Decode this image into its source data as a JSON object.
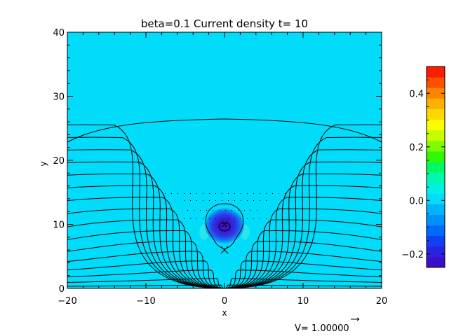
{
  "chart_data": {
    "type": "heatmap",
    "title": "beta=0.1 Current density t= 10",
    "xlabel": "x",
    "ylabel": "y",
    "xlim": [
      -20,
      20
    ],
    "ylim": [
      0,
      40
    ],
    "x_ticks": [
      -20,
      -10,
      0,
      10,
      20
    ],
    "x_tick_labels": [
      "−20",
      "−10",
      "0",
      "10",
      "20"
    ],
    "y_ticks": [
      0,
      10,
      20,
      30,
      40
    ],
    "y_tick_labels": [
      "0",
      "10",
      "20",
      "30",
      "40"
    ],
    "background_value": 0.0,
    "current_concentration": {
      "center": [
        0,
        10
      ],
      "radius": 2.3,
      "min_value": -0.25
    },
    "x_point": [
      0,
      6
    ],
    "colorbar": {
      "range": [
        -0.25,
        0.5
      ],
      "ticks": [
        -0.2,
        0.0,
        0.2,
        0.4
      ],
      "tick_labels": [
        "−0.2",
        "0.0",
        "0.2",
        "0.4"
      ],
      "colors": [
        "#3a10c8",
        "#2a22e0",
        "#1040f4",
        "#0068fa",
        "#0090fa",
        "#00b4fa",
        "#00dcfa",
        "#00f0e4",
        "#00f8a8",
        "#00f860",
        "#30f800",
        "#80fc00",
        "#c8fc00",
        "#fcfc00",
        "#fcd800",
        "#fcb000",
        "#fc8400",
        "#fc5000",
        "#fc1c00"
      ]
    },
    "vector_label": "V= 1.00000",
    "contour_levels": 16,
    "grid": false
  }
}
